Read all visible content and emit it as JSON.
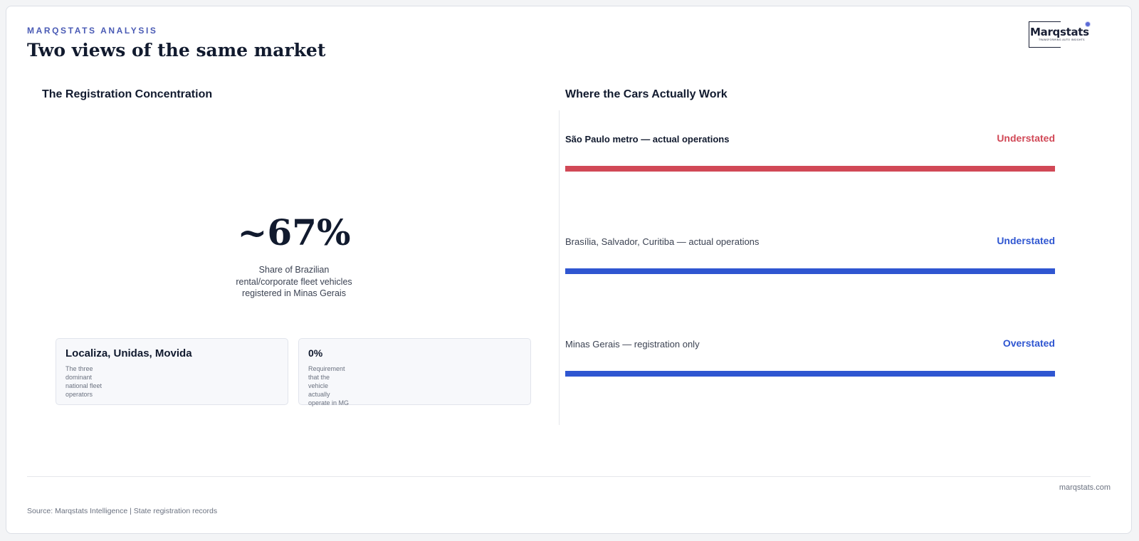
{
  "header": {
    "eyebrow": "MARQSTATS ANALYSIS",
    "title": "Two views of the same market"
  },
  "logo": {
    "name": "Marqstats",
    "tagline": "TRANSFORMING AUTO INSIGHTS"
  },
  "left_panel": {
    "title": "The Registration Concentration",
    "stat_value": "~67%",
    "stat_caption": "Share of Brazilian rental/corporate fleet vehicles registered in Minas Gerais",
    "cards": [
      {
        "title": "Localiza, Unidas, Movida",
        "description": "The three dominant national fleet operators"
      },
      {
        "title": "0%",
        "description": "Requirement that the vehicle actually operate in MG"
      }
    ]
  },
  "right_panel": {
    "title": "Where the Cars Actually Work",
    "rows": [
      {
        "label": "São Paulo metro — actual operations",
        "status": "Understated",
        "color": "#d14856",
        "emphasis": true
      },
      {
        "label": "Brasília, Salvador, Curitiba — actual operations",
        "status": "Understated",
        "color": "#2f56d1",
        "emphasis": false
      },
      {
        "label": "Minas Gerais — registration only",
        "status": "Overstated",
        "color": "#2f56d1",
        "emphasis": false
      }
    ]
  },
  "footer": {
    "url": "marqstats.com",
    "source": "Source: Marqstats Intelligence | State registration records"
  }
}
